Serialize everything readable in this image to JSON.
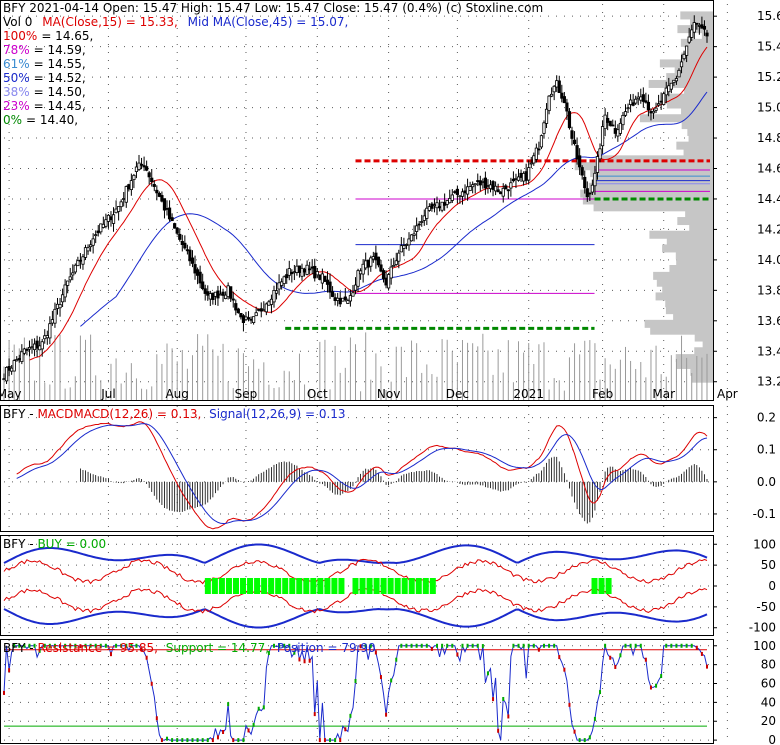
{
  "colors": {
    "frame": "#000000",
    "grid": "#333333",
    "volume": "#9a9a9a",
    "volprofile": "#c6c6c6",
    "up": "#00aa00",
    "down": "#cc0000",
    "ma15": "#dd0000",
    "ma45": "#1a2acc",
    "fib100": "#dd0000",
    "fib78": "#cc00cc",
    "fib61": "#3a8bd0",
    "fib50": "#1a2acc",
    "fib38": "#8888ee",
    "fib23": "#cc00cc",
    "fib0": "#008800",
    "signal_green": "#00ff00"
  },
  "header": {
    "title": "BFY  2021-04-14 Open: 15.47  High: 15.47  Low: 15.47  Close: 15.47 (0.4%)  (c) Stoxline.com",
    "legend": [
      {
        "text": "Vol 0",
        "color": "#000000"
      },
      {
        "text": "MA(Close,15) = 15.33,",
        "color": "#dd0000"
      },
      {
        "text": "Mid MA(Close,45) = 15.07,",
        "color": "#1a2acc"
      }
    ],
    "fib_labels": [
      {
        "pct": "100%",
        "value": "= 14.65,",
        "color": "#dd0000"
      },
      {
        "pct": "78%",
        "value": "= 14.59,",
        "color": "#cc00cc"
      },
      {
        "pct": "61%",
        "value": "= 14.55,",
        "color": "#3a8bd0"
      },
      {
        "pct": "50%",
        "value": "= 14.52,",
        "color": "#1a2acc"
      },
      {
        "pct": "38%",
        "value": "= 14.50,",
        "color": "#8888ee"
      },
      {
        "pct": "23%",
        "value": "= 14.45,",
        "color": "#cc00cc"
      },
      {
        "pct": "0%",
        "value": "= 14.40,",
        "color": "#008800"
      }
    ]
  },
  "chart_data": [
    {
      "type": "candlestick",
      "title": "BFY  2021-04-14 Open: 15.47  High: 15.47  Low: 15.47  Close: 15.47 (0.4%)  (c) Stoxline.com",
      "x_ticks": [
        "May",
        "Jul",
        "Aug",
        "Sep",
        "Oct",
        "Nov",
        "Dec",
        "2021",
        "Feb",
        "Mar",
        "Apr"
      ],
      "y_ticks": [
        "15.6",
        "15.4",
        "15.2",
        "15.0",
        "14.8",
        "14.6",
        "14.4",
        "14.2",
        "14.0",
        "13.8",
        "13.6",
        "13.4",
        "13.2"
      ],
      "ylim": [
        13.08,
        15.68
      ],
      "close_anchors": [
        [
          0,
          13.25
        ],
        [
          8,
          13.4
        ],
        [
          15,
          13.45
        ],
        [
          25,
          13.85
        ],
        [
          35,
          14.15
        ],
        [
          45,
          14.35
        ],
        [
          52,
          14.6
        ],
        [
          55,
          14.63
        ],
        [
          60,
          14.45
        ],
        [
          67,
          14.2
        ],
        [
          73,
          14.0
        ],
        [
          80,
          13.75
        ],
        [
          88,
          13.8
        ],
        [
          93,
          13.62
        ],
        [
          97,
          13.58
        ],
        [
          104,
          13.75
        ],
        [
          112,
          13.92
        ],
        [
          118,
          13.95
        ],
        [
          125,
          13.88
        ],
        [
          130,
          13.75
        ],
        [
          135,
          13.72
        ],
        [
          140,
          13.95
        ],
        [
          145,
          14.0
        ],
        [
          150,
          13.85
        ],
        [
          155,
          14.05
        ],
        [
          160,
          14.15
        ],
        [
          165,
          14.3
        ],
        [
          170,
          14.35
        ],
        [
          175,
          14.4
        ],
        [
          180,
          14.45
        ],
        [
          185,
          14.5
        ],
        [
          190,
          14.5
        ],
        [
          195,
          14.45
        ],
        [
          200,
          14.5
        ],
        [
          205,
          14.55
        ],
        [
          210,
          14.75
        ],
        [
          214,
          15.1
        ],
        [
          217,
          15.15
        ],
        [
          220,
          15.05
        ],
        [
          223,
          14.8
        ],
        [
          226,
          14.6
        ],
        [
          229,
          14.42
        ],
        [
          232,
          14.55
        ],
        [
          236,
          14.95
        ],
        [
          240,
          14.85
        ],
        [
          245,
          15.0
        ],
        [
          250,
          15.1
        ],
        [
          255,
          14.95
        ],
        [
          260,
          15.1
        ],
        [
          264,
          15.2
        ],
        [
          268,
          15.4
        ],
        [
          271,
          15.55
        ],
        [
          274,
          15.5
        ],
        [
          276,
          15.47
        ]
      ],
      "ma15_last": 15.33,
      "ma45_last": 15.07,
      "fib_levels": [
        {
          "pct": "100%",
          "value": 14.65,
          "x0": 0.5,
          "dash": true
        },
        {
          "pct": "78%",
          "value": 14.59,
          "x0": 0.84,
          "dash": false
        },
        {
          "pct": "61%",
          "value": 14.55,
          "x0": 0.84,
          "dash": false
        },
        {
          "pct": "50%",
          "value": 14.52,
          "x0": 0.84,
          "dash": false
        },
        {
          "pct": "38%",
          "value": 14.5,
          "x0": 0.84,
          "dash": false
        },
        {
          "pct": "23%",
          "value": 14.45,
          "x0": 0.84,
          "dash": false
        },
        {
          "pct": "0%",
          "value": 14.4,
          "x0": 0.84,
          "dash": true
        }
      ],
      "support_resistance": [
        {
          "value": 14.4,
          "x0": 0.5,
          "x1": 0.84,
          "color": "#cc00cc"
        },
        {
          "value": 14.1,
          "x0": 0.5,
          "x1": 0.84,
          "color": "#1a2acc"
        },
        {
          "value": 13.78,
          "x0": 0.5,
          "x1": 0.84,
          "color": "#cc00cc"
        },
        {
          "value": 13.55,
          "x0": 0.4,
          "x1": 0.84,
          "color": "#008800",
          "dash": true
        }
      ]
    },
    {
      "type": "line",
      "name": "MACD",
      "title": "BFY - MACDMACD(12,26) = 0.13, Signal(12,26,9) = 0.13",
      "y_ticks": [
        "0.2",
        "0.1",
        "0.0",
        "-0.1"
      ],
      "ylim": [
        -0.15,
        0.23
      ],
      "macd_last": 0.13,
      "signal_last": 0.13
    },
    {
      "type": "line",
      "name": "BUY",
      "title": "BFY - BUY = 0.00",
      "y_ticks": [
        "100",
        "50",
        "0",
        "-50",
        "-100"
      ],
      "ylim": [
        -115,
        115
      ],
      "buy_value": 0.0,
      "buy_signals_at": [
        0.29,
        0.3,
        0.31,
        0.32,
        0.33,
        0.34,
        0.35,
        0.36,
        0.37,
        0.38,
        0.39,
        0.4,
        0.41,
        0.42,
        0.43,
        0.44,
        0.45,
        0.46,
        0.47,
        0.48,
        0.5,
        0.51,
        0.52,
        0.53,
        0.54,
        0.55,
        0.56,
        0.57,
        0.58,
        0.59,
        0.6,
        0.61,
        0.84,
        0.85,
        0.86
      ]
    },
    {
      "type": "line",
      "name": "Resistance / Support / Position",
      "title": "BFY - Resistance = 95.85, Support = 14.77, Position = 79.90",
      "y_ticks": [
        "100",
        "80",
        "60",
        "40",
        "20",
        "0"
      ],
      "ylim": [
        -2,
        104
      ],
      "resistance": 95.85,
      "support": 14.77,
      "position": 79.9
    }
  ],
  "panels": {
    "macd": {
      "label_prefix": "BFY - ",
      "label_main": "MACDMACD(12,26) = 0.13,",
      "label_signal": "Signal(12,26,9) = 0.13"
    },
    "buy": {
      "label_prefix": "BFY - ",
      "label_main": "BUY = 0.00"
    },
    "rsp": {
      "label_prefix": "BFY - ",
      "label_res": "Resistance = 95.85,",
      "label_sup": "Support = 14.77,",
      "label_pos": "Position = 79.90"
    }
  }
}
